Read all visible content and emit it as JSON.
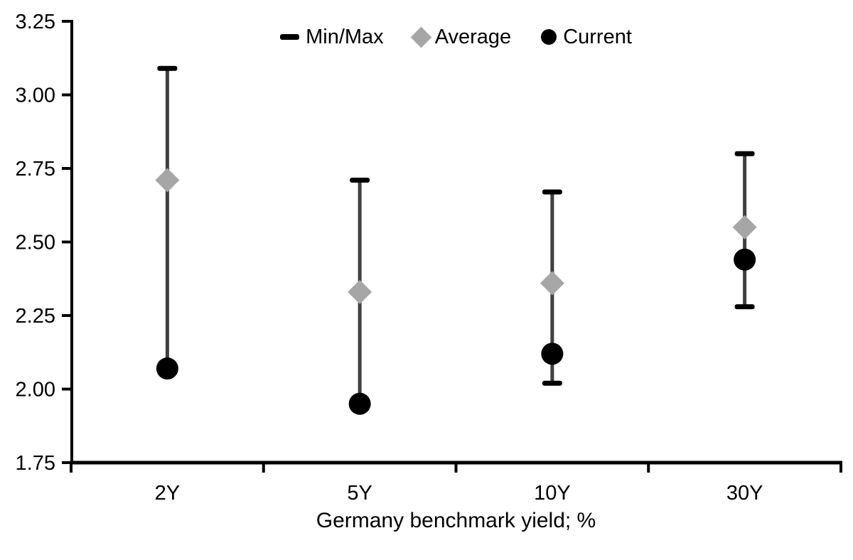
{
  "chart_data": {
    "type": "scatter",
    "title": "",
    "xlabel": "Germany benchmark yield; %",
    "ylabel": "",
    "categories": [
      "2Y",
      "5Y",
      "10Y",
      "30Y"
    ],
    "ylim": [
      1.75,
      3.25
    ],
    "ytick_step": 0.25,
    "yticks": [
      "3.25",
      "3.00",
      "2.75",
      "2.50",
      "2.25",
      "2.00",
      "1.75"
    ],
    "grid": false,
    "legend_position": "top-center",
    "axis_color": "#000000",
    "background": "#ffffff",
    "series": [
      {
        "name": "Min/Max",
        "kind": "range",
        "marker": "cap",
        "cap_color": "#000000",
        "line_color": "#3f3f3f",
        "min": [
          2.07,
          1.95,
          2.02,
          2.28
        ],
        "max": [
          3.09,
          2.71,
          2.67,
          2.8
        ]
      },
      {
        "name": "Average",
        "kind": "point",
        "marker": "diamond",
        "color": "#a6a6a6",
        "values": [
          2.71,
          2.33,
          2.36,
          2.55
        ]
      },
      {
        "name": "Current",
        "kind": "point",
        "marker": "circle",
        "color": "#000000",
        "values": [
          2.07,
          1.95,
          2.12,
          2.44
        ]
      }
    ]
  }
}
